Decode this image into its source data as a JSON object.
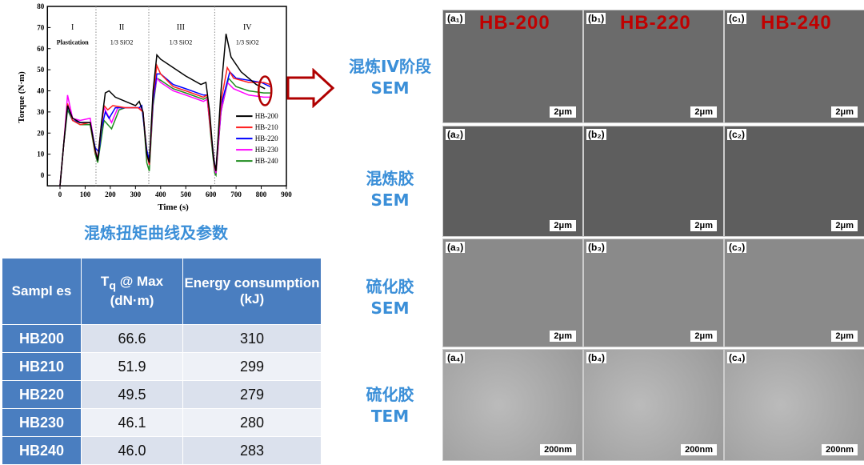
{
  "chart_data": {
    "type": "line",
    "xlabel": "Time (s)",
    "ylabel": "Torque (N·m)",
    "xlim": [
      -50,
      900
    ],
    "ylim": [
      -5,
      80
    ],
    "xticks": [
      0,
      100,
      200,
      300,
      400,
      500,
      600,
      700,
      800,
      900
    ],
    "yticks": [
      0,
      10,
      20,
      30,
      40,
      50,
      60,
      70,
      80
    ],
    "stages": [
      {
        "numeral": "I",
        "label": "Plastication"
      },
      {
        "numeral": "II",
        "label": "1/3 SiO2"
      },
      {
        "numeral": "III",
        "label": "1/3 SiO2"
      },
      {
        "numeral": "IV",
        "label": "1/3 SiO2"
      }
    ],
    "stage_boundaries": [
      143,
      353,
      615
    ],
    "legend": "right",
    "series": [
      {
        "name": "HB-200",
        "color": "#000000",
        "points": [
          [
            0,
            -5
          ],
          [
            15,
            15
          ],
          [
            30,
            33
          ],
          [
            50,
            27
          ],
          [
            80,
            25
          ],
          [
            120,
            25
          ],
          [
            140,
            12
          ],
          [
            150,
            7
          ],
          [
            165,
            25
          ],
          [
            180,
            39
          ],
          [
            195,
            40
          ],
          [
            220,
            37
          ],
          [
            260,
            35
          ],
          [
            300,
            33
          ],
          [
            315,
            35
          ],
          [
            330,
            30
          ],
          [
            345,
            10
          ],
          [
            355,
            6
          ],
          [
            370,
            40
          ],
          [
            385,
            57
          ],
          [
            400,
            55
          ],
          [
            450,
            51
          ],
          [
            500,
            47
          ],
          [
            560,
            43
          ],
          [
            580,
            44
          ],
          [
            595,
            30
          ],
          [
            610,
            8
          ],
          [
            620,
            2
          ],
          [
            640,
            40
          ],
          [
            660,
            67
          ],
          [
            680,
            56
          ],
          [
            720,
            49
          ],
          [
            780,
            43
          ],
          [
            815,
            41
          ]
        ]
      },
      {
        "name": "HB-210",
        "color": "#ff2020",
        "points": [
          [
            0,
            -5
          ],
          [
            15,
            15
          ],
          [
            30,
            34
          ],
          [
            50,
            26
          ],
          [
            80,
            24
          ],
          [
            120,
            25
          ],
          [
            140,
            11
          ],
          [
            150,
            8
          ],
          [
            165,
            24
          ],
          [
            175,
            33
          ],
          [
            190,
            31
          ],
          [
            210,
            33
          ],
          [
            260,
            32
          ],
          [
            310,
            32
          ],
          [
            330,
            30
          ],
          [
            345,
            10
          ],
          [
            355,
            5
          ],
          [
            370,
            38
          ],
          [
            385,
            52
          ],
          [
            400,
            48
          ],
          [
            450,
            42
          ],
          [
            500,
            40
          ],
          [
            570,
            37
          ],
          [
            585,
            38
          ],
          [
            600,
            20
          ],
          [
            615,
            4
          ],
          [
            620,
            2
          ],
          [
            640,
            35
          ],
          [
            665,
            51
          ],
          [
            690,
            46
          ],
          [
            750,
            44
          ],
          [
            810,
            44
          ],
          [
            835,
            43
          ]
        ]
      },
      {
        "name": "HB-220",
        "color": "#0000ff",
        "points": [
          [
            0,
            -5
          ],
          [
            15,
            15
          ],
          [
            30,
            33
          ],
          [
            50,
            26
          ],
          [
            80,
            25
          ],
          [
            120,
            25
          ],
          [
            140,
            13
          ],
          [
            155,
            11
          ],
          [
            165,
            22
          ],
          [
            180,
            30
          ],
          [
            195,
            27
          ],
          [
            220,
            32
          ],
          [
            260,
            32
          ],
          [
            315,
            32
          ],
          [
            325,
            33
          ],
          [
            345,
            12
          ],
          [
            355,
            7
          ],
          [
            370,
            35
          ],
          [
            385,
            48
          ],
          [
            400,
            48
          ],
          [
            450,
            43
          ],
          [
            500,
            41
          ],
          [
            570,
            38
          ],
          [
            585,
            38
          ],
          [
            600,
            20
          ],
          [
            615,
            5
          ],
          [
            620,
            3
          ],
          [
            640,
            33
          ],
          [
            675,
            49
          ],
          [
            700,
            46
          ],
          [
            750,
            45
          ],
          [
            800,
            44
          ],
          [
            835,
            42
          ]
        ]
      },
      {
        "name": "HB-230",
        "color": "#ff00ff",
        "points": [
          [
            0,
            -5
          ],
          [
            15,
            15
          ],
          [
            30,
            38
          ],
          [
            50,
            27
          ],
          [
            80,
            26
          ],
          [
            120,
            27
          ],
          [
            140,
            12
          ],
          [
            150,
            8
          ],
          [
            165,
            24
          ],
          [
            175,
            32
          ],
          [
            205,
            25
          ],
          [
            230,
            32
          ],
          [
            260,
            32
          ],
          [
            315,
            32
          ],
          [
            330,
            30
          ],
          [
            345,
            10
          ],
          [
            355,
            5
          ],
          [
            370,
            35
          ],
          [
            385,
            46
          ],
          [
            400,
            44
          ],
          [
            450,
            40
          ],
          [
            500,
            38
          ],
          [
            570,
            35
          ],
          [
            585,
            36
          ],
          [
            600,
            20
          ],
          [
            615,
            3
          ],
          [
            620,
            1
          ],
          [
            640,
            30
          ],
          [
            665,
            44
          ],
          [
            690,
            41
          ],
          [
            750,
            38
          ],
          [
            810,
            37
          ],
          [
            835,
            37
          ]
        ]
      },
      {
        "name": "HB-240",
        "color": "#1f8c1f",
        "points": [
          [
            0,
            -5
          ],
          [
            15,
            15
          ],
          [
            30,
            31
          ],
          [
            50,
            26
          ],
          [
            80,
            24
          ],
          [
            120,
            24
          ],
          [
            140,
            10
          ],
          [
            150,
            6
          ],
          [
            165,
            18
          ],
          [
            175,
            26
          ],
          [
            205,
            22
          ],
          [
            235,
            31
          ],
          [
            260,
            32
          ],
          [
            315,
            32
          ],
          [
            330,
            30
          ],
          [
            345,
            6
          ],
          [
            355,
            2
          ],
          [
            370,
            33
          ],
          [
            385,
            46
          ],
          [
            400,
            45
          ],
          [
            450,
            41
          ],
          [
            500,
            39
          ],
          [
            570,
            36
          ],
          [
            585,
            37
          ],
          [
            600,
            18
          ],
          [
            615,
            1
          ],
          [
            620,
            0
          ],
          [
            640,
            30
          ],
          [
            670,
            46
          ],
          [
            700,
            42
          ],
          [
            750,
            40
          ],
          [
            810,
            39
          ],
          [
            840,
            39
          ]
        ]
      }
    ]
  },
  "caption": "混炼扭矩曲线及参数",
  "table": {
    "headers": [
      "Samples",
      "Tq @ Max (dN·m)",
      "Energy consumption (kJ)"
    ],
    "header_parts": {
      "samples": "Sampl es",
      "tq": "T",
      "tq_sub": "q",
      "tq_rest": " @ Max",
      "tq_unit": "(dN·m)",
      "energy": "Energy consumption",
      "energy_unit": "(kJ)"
    },
    "rows": [
      [
        "HB200",
        "66.6",
        "310"
      ],
      [
        "HB210",
        "51.9",
        "299"
      ],
      [
        "HB220",
        "49.5",
        "279"
      ],
      [
        "HB230",
        "46.1",
        "280"
      ],
      [
        "HB240",
        "46.0",
        "283"
      ]
    ]
  },
  "row_labels": [
    [
      "混炼IV阶段",
      "SEM"
    ],
    [
      "混炼胶",
      "SEM"
    ],
    [
      "硫化胶",
      "SEM"
    ],
    [
      "硫化胶",
      "TEM"
    ]
  ],
  "columns": [
    "HB-200",
    "HB-220",
    "HB-240"
  ],
  "panel_tags": [
    [
      "(a₁)",
      "(b₁)",
      "(c₁)"
    ],
    [
      "(a₂)",
      "(b₂)",
      "(c₂)"
    ],
    [
      "(a₃)",
      "(b₃)",
      "(c₃)"
    ],
    [
      "(a₄)",
      "(b₄)",
      "(c₄)"
    ]
  ],
  "scale_bars": [
    "2μm",
    "2μm",
    "2μm",
    "200nm"
  ],
  "accent": "#3b8fd8",
  "arrow_color": "#b00000"
}
